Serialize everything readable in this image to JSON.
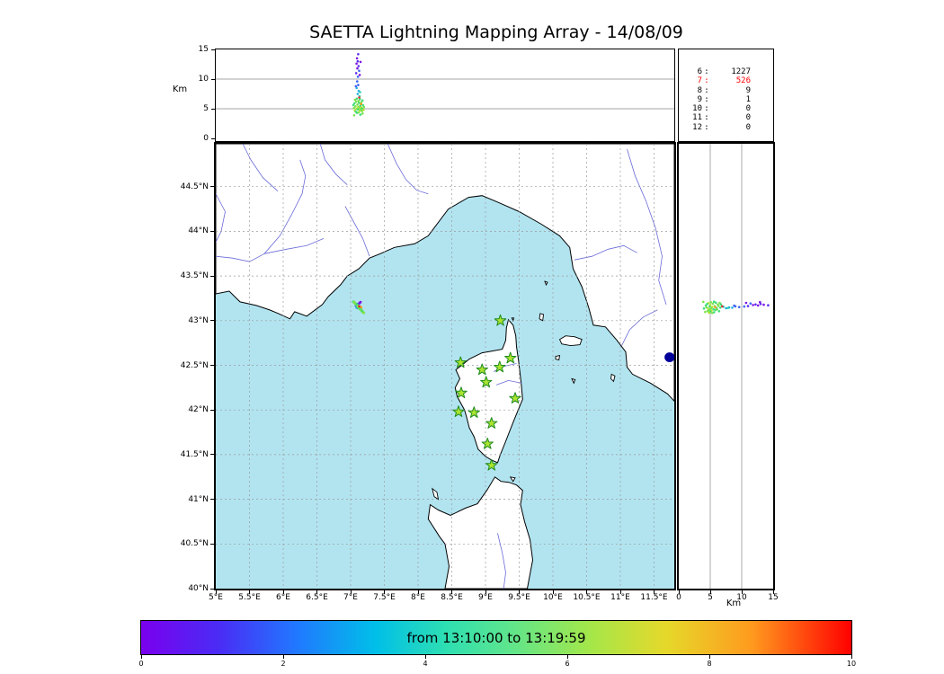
{
  "title": "SAETTA Lightning Mapping Array - 14/08/09",
  "colors": {
    "sea": "#b2e4f0",
    "land": "#ffffff",
    "coast": "#000000",
    "grid": "#9a9a9a",
    "panel_grid": "#888888",
    "river": "#6a6ad9",
    "lake": "#000099",
    "station_fill": "#aae430",
    "station_edge": "#1f8a1f",
    "stats_highlight": "#ff0000"
  },
  "alt_panel": {
    "ylabel": "Km",
    "yticks": [
      "0",
      "5",
      "10",
      "15"
    ],
    "ylim": [
      0,
      15
    ]
  },
  "lat_panel": {
    "xlabel": "Km",
    "xticks": [
      "0",
      "5",
      "10",
      "15"
    ],
    "xlim": [
      0,
      15
    ]
  },
  "stats_panel": {
    "rows": [
      {
        "label": "6",
        "value": "1227",
        "highlight": false
      },
      {
        "label": "7",
        "value": "526",
        "highlight": true
      },
      {
        "label": "8",
        "value": "9",
        "highlight": false
      },
      {
        "label": "9",
        "value": "1",
        "highlight": false
      },
      {
        "label": "10",
        "value": "0",
        "highlight": false
      },
      {
        "label": "11",
        "value": "0",
        "highlight": false
      },
      {
        "label": "12",
        "value": "0",
        "highlight": false
      }
    ]
  },
  "map": {
    "lon_ticks": [
      "5°E",
      "5.5°E",
      "6°E",
      "6.5°E",
      "7°E",
      "7.5°E",
      "8°E",
      "8.5°E",
      "9°E",
      "9.5°E",
      "10°E",
      "10.5°E",
      "11°E",
      "11.5°E"
    ],
    "lat_ticks": [
      "44.5°N",
      "44°N",
      "43.5°N",
      "43°N",
      "42.5°N",
      "42°N",
      "41.5°N",
      "41°N",
      "40.5°N",
      "40°N"
    ],
    "geo": {
      "mainland": [
        [
          5.0,
          43.3
        ],
        [
          5.2,
          43.33
        ],
        [
          5.36,
          43.21
        ],
        [
          5.6,
          43.17
        ],
        [
          5.8,
          43.12
        ],
        [
          5.93,
          43.08
        ],
        [
          6.1,
          43.02
        ],
        [
          6.17,
          43.1
        ],
        [
          6.35,
          43.05
        ],
        [
          6.58,
          43.18
        ],
        [
          6.67,
          43.27
        ],
        [
          6.85,
          43.4
        ],
        [
          6.95,
          43.5
        ],
        [
          7.12,
          43.58
        ],
        [
          7.28,
          43.7
        ],
        [
          7.44,
          43.75
        ],
        [
          7.65,
          43.82
        ],
        [
          7.95,
          43.86
        ],
        [
          8.15,
          43.95
        ],
        [
          8.45,
          44.25
        ],
        [
          8.75,
          44.38
        ],
        [
          8.95,
          44.4
        ],
        [
          9.2,
          44.32
        ],
        [
          9.5,
          44.22
        ],
        [
          9.83,
          44.08
        ],
        [
          10.1,
          43.95
        ],
        [
          10.25,
          43.82
        ],
        [
          10.3,
          43.58
        ],
        [
          10.43,
          43.38
        ],
        [
          10.53,
          43.15
        ],
        [
          10.6,
          42.95
        ],
        [
          10.78,
          42.93
        ],
        [
          10.95,
          42.78
        ],
        [
          11.08,
          42.65
        ],
        [
          11.1,
          42.48
        ],
        [
          11.18,
          42.4
        ],
        [
          11.45,
          42.3
        ],
        [
          11.7,
          42.18
        ],
        [
          11.8,
          42.1
        ],
        [
          11.8,
          44.98
        ],
        [
          5.0,
          44.98
        ]
      ],
      "corsica": [
        [
          9.34,
          43.01
        ],
        [
          9.41,
          42.95
        ],
        [
          9.45,
          42.83
        ],
        [
          9.46,
          42.71
        ],
        [
          9.49,
          42.55
        ],
        [
          9.53,
          42.3
        ],
        [
          9.55,
          42.12
        ],
        [
          9.42,
          41.88
        ],
        [
          9.3,
          41.65
        ],
        [
          9.22,
          41.5
        ],
        [
          9.18,
          41.41
        ],
        [
          9.09,
          41.44
        ],
        [
          9.0,
          41.48
        ],
        [
          8.89,
          41.56
        ],
        [
          8.83,
          41.7
        ],
        [
          8.76,
          41.8
        ],
        [
          8.72,
          41.92
        ],
        [
          8.69,
          42.0
        ],
        [
          8.58,
          42.15
        ],
        [
          8.55,
          42.25
        ],
        [
          8.62,
          42.35
        ],
        [
          8.56,
          42.45
        ],
        [
          8.68,
          42.52
        ],
        [
          8.76,
          42.57
        ],
        [
          8.95,
          42.64
        ],
        [
          9.1,
          42.66
        ],
        [
          9.25,
          42.68
        ],
        [
          9.3,
          42.78
        ],
        [
          9.31,
          42.92
        ]
      ],
      "sardinia": [
        [
          8.4,
          40.0
        ],
        [
          8.46,
          40.25
        ],
        [
          8.4,
          40.5
        ],
        [
          8.32,
          40.58
        ],
        [
          8.15,
          40.78
        ],
        [
          8.18,
          40.94
        ],
        [
          8.3,
          40.88
        ],
        [
          8.48,
          40.82
        ],
        [
          8.7,
          40.9
        ],
        [
          8.88,
          40.95
        ],
        [
          9.02,
          41.1
        ],
        [
          9.14,
          41.25
        ],
        [
          9.23,
          41.2
        ],
        [
          9.35,
          41.19
        ],
        [
          9.46,
          41.16
        ],
        [
          9.55,
          41.1
        ],
        [
          9.52,
          40.94
        ],
        [
          9.58,
          40.75
        ],
        [
          9.66,
          40.55
        ],
        [
          9.7,
          40.32
        ],
        [
          9.62,
          40.0
        ]
      ],
      "islands": [
        [
          [
            10.1,
            42.79
          ],
          [
            10.19,
            42.83
          ],
          [
            10.32,
            42.82
          ],
          [
            10.43,
            42.79
          ],
          [
            10.4,
            42.73
          ],
          [
            10.26,
            42.72
          ],
          [
            10.13,
            42.74
          ]
        ],
        [
          [
            9.81,
            43.08
          ],
          [
            9.86,
            43.07
          ],
          [
            9.85,
            43.0
          ],
          [
            9.8,
            43.02
          ]
        ],
        [
          [
            9.88,
            43.44
          ],
          [
            9.92,
            43.43
          ],
          [
            9.9,
            43.4
          ]
        ],
        [
          [
            10.04,
            42.6
          ],
          [
            10.1,
            42.61
          ],
          [
            10.09,
            42.56
          ],
          [
            10.04,
            42.57
          ]
        ],
        [
          [
            10.28,
            42.35
          ],
          [
            10.33,
            42.34
          ],
          [
            10.31,
            42.3
          ]
        ],
        [
          [
            10.87,
            42.4
          ],
          [
            10.92,
            42.38
          ],
          [
            10.9,
            42.32
          ],
          [
            10.86,
            42.35
          ]
        ],
        [
          [
            8.21,
            41.12
          ],
          [
            8.28,
            41.08
          ],
          [
            8.3,
            41.0
          ],
          [
            8.24,
            41.03
          ]
        ],
        [
          [
            9.37,
            41.25
          ],
          [
            9.44,
            41.24
          ],
          [
            9.41,
            41.2
          ]
        ],
        [
          [
            9.39,
            43.03
          ],
          [
            9.42,
            43.03
          ],
          [
            9.41,
            43.0
          ]
        ]
      ],
      "rivers": [
        [
          [
            5.0,
            43.72
          ],
          [
            5.25,
            43.7
          ],
          [
            5.5,
            43.66
          ],
          [
            5.72,
            43.75
          ],
          [
            5.95,
            43.95
          ],
          [
            6.12,
            44.18
          ],
          [
            6.28,
            44.42
          ],
          [
            6.33,
            44.62
          ],
          [
            6.25,
            44.8
          ]
        ],
        [
          [
            5.72,
            43.75
          ],
          [
            6.05,
            43.8
          ],
          [
            6.35,
            43.84
          ],
          [
            6.6,
            43.92
          ]
        ],
        [
          [
            7.28,
            43.72
          ],
          [
            7.18,
            43.92
          ],
          [
            7.05,
            44.1
          ],
          [
            6.92,
            44.28
          ]
        ],
        [
          [
            7.55,
            44.98
          ],
          [
            7.68,
            44.76
          ],
          [
            7.82,
            44.58
          ],
          [
            7.98,
            44.46
          ],
          [
            8.15,
            44.42
          ]
        ],
        [
          [
            11.1,
            44.92
          ],
          [
            11.22,
            44.62
          ],
          [
            11.38,
            44.34
          ],
          [
            11.52,
            44.04
          ],
          [
            11.62,
            43.72
          ],
          [
            11.57,
            43.45
          ],
          [
            11.68,
            43.18
          ]
        ],
        [
          [
            10.32,
            43.68
          ],
          [
            10.58,
            43.72
          ],
          [
            10.82,
            43.8
          ],
          [
            11.05,
            43.84
          ],
          [
            11.25,
            43.76
          ]
        ],
        [
          [
            11.02,
            42.72
          ],
          [
            11.14,
            42.9
          ],
          [
            11.34,
            43.04
          ],
          [
            11.55,
            43.12
          ]
        ],
        [
          [
            5.0,
            44.42
          ],
          [
            5.14,
            44.22
          ],
          [
            5.08,
            44.0
          ],
          [
            5.0,
            43.88
          ]
        ],
        [
          [
            5.4,
            44.98
          ],
          [
            5.52,
            44.8
          ],
          [
            5.7,
            44.6
          ],
          [
            5.92,
            44.45
          ]
        ],
        [
          [
            6.55,
            44.98
          ],
          [
            6.62,
            44.8
          ],
          [
            6.78,
            44.64
          ],
          [
            6.95,
            44.52
          ]
        ],
        [
          [
            9.54,
            42.3
          ],
          [
            9.34,
            42.33
          ],
          [
            9.16,
            42.28
          ]
        ],
        [
          [
            9.46,
            42.52
          ],
          [
            9.28,
            42.49
          ],
          [
            9.12,
            42.43
          ]
        ],
        [
          [
            9.18,
            40.62
          ],
          [
            9.25,
            40.4
          ],
          [
            9.3,
            40.18
          ],
          [
            9.27,
            40.0
          ]
        ]
      ],
      "lakes": [
        {
          "c": [
            11.73,
            42.59
          ],
          "rx": 0.075,
          "ry": 0.055
        }
      ]
    }
  },
  "colorbar": {
    "label": "from 13:10:00 to 13:19:59",
    "ticks": [
      "0",
      "2",
      "4",
      "6",
      "8",
      "10"
    ],
    "stops": [
      {
        "o": 0,
        "c": "#7a00ee"
      },
      {
        "o": 11,
        "c": "#4a2cf5"
      },
      {
        "o": 22,
        "c": "#2079ff"
      },
      {
        "o": 33,
        "c": "#00bfe8"
      },
      {
        "o": 43,
        "c": "#2edfb2"
      },
      {
        "o": 52,
        "c": "#5fe58c"
      },
      {
        "o": 63,
        "c": "#a3e74a"
      },
      {
        "o": 74,
        "c": "#e6d82a"
      },
      {
        "o": 86,
        "c": "#ff9a1e"
      },
      {
        "o": 100,
        "c": "#ff0000"
      }
    ]
  },
  "chart_data": {
    "type": "scatter",
    "title": "SAETTA Lightning Mapping Array - 14/08/09",
    "time_window": {
      "from": "13:10:00",
      "to": "13:19:59"
    },
    "colorbar_range": [
      0,
      10
    ],
    "station_source_counts": {
      "6": 1227,
      "7": 526,
      "8": 9,
      "9": 1,
      "10": 0,
      "11": 0,
      "12": 0
    },
    "panels": {
      "top": {
        "x": "longitude_E",
        "y": "altitude_km",
        "ylim": [
          0,
          15
        ],
        "yticks": [
          0,
          5,
          10,
          15
        ]
      },
      "map": {
        "x": "longitude_E",
        "y": "latitude_N",
        "xlim": [
          5,
          11.8
        ],
        "ylim": [
          40,
          44.98
        ]
      },
      "right": {
        "x": "altitude_km",
        "y": "latitude_N",
        "xlim": [
          0,
          15
        ],
        "xticks": [
          0,
          5,
          10,
          15
        ]
      }
    },
    "stations": [
      [
        9.22,
        43.0
      ],
      [
        8.63,
        42.53
      ],
      [
        8.95,
        42.45
      ],
      [
        9.21,
        42.48
      ],
      [
        9.37,
        42.58
      ],
      [
        9.01,
        42.31
      ],
      [
        8.64,
        42.19
      ],
      [
        9.44,
        42.13
      ],
      [
        8.6,
        41.98
      ],
      [
        8.83,
        41.97
      ],
      [
        9.09,
        41.85
      ],
      [
        9.03,
        41.62
      ],
      [
        9.09,
        41.38
      ]
    ],
    "palette": [
      "#7d14e6",
      "#5a2cf0",
      "#3c64f5",
      "#28aee0",
      "#2ed1b4",
      "#3fdd7a",
      "#7ae24c",
      "#b2e428",
      "#ff9a1e",
      "#e03030"
    ],
    "sources": [
      [
        7.095,
        43.178,
        13.5,
        0
      ],
      [
        7.105,
        43.186,
        13.0,
        1
      ],
      [
        7.088,
        43.17,
        12.6,
        0
      ],
      [
        7.118,
        43.181,
        12.2,
        1
      ],
      [
        7.1,
        43.175,
        11.8,
        0
      ],
      [
        7.126,
        43.192,
        11.4,
        2
      ],
      [
        7.083,
        43.163,
        11.0,
        1
      ],
      [
        7.135,
        43.199,
        10.7,
        0
      ],
      [
        7.108,
        43.158,
        10.4,
        2
      ],
      [
        7.147,
        43.207,
        12.9,
        0
      ],
      [
        7.112,
        43.172,
        14.2,
        1
      ],
      [
        7.098,
        43.152,
        9.6,
        2
      ],
      [
        7.112,
        43.16,
        9.0,
        2
      ],
      [
        7.09,
        43.145,
        8.5,
        3
      ],
      [
        7.12,
        43.148,
        8.0,
        3
      ],
      [
        7.104,
        43.14,
        7.5,
        3
      ],
      [
        7.132,
        43.156,
        7.1,
        4
      ],
      [
        7.078,
        43.168,
        8.8,
        2
      ],
      [
        7.14,
        43.142,
        7.8,
        4
      ],
      [
        7.04,
        43.212,
        5.6,
        5
      ],
      [
        7.048,
        43.206,
        5.1,
        6
      ],
      [
        7.056,
        43.2,
        5.9,
        5
      ],
      [
        7.062,
        43.196,
        4.7,
        7
      ],
      [
        7.07,
        43.19,
        5.4,
        6
      ],
      [
        7.076,
        43.186,
        4.5,
        5
      ],
      [
        7.082,
        43.18,
        6.2,
        6
      ],
      [
        7.088,
        43.174,
        5.0,
        7
      ],
      [
        7.094,
        43.17,
        4.3,
        5
      ],
      [
        7.1,
        43.164,
        5.7,
        6
      ],
      [
        7.106,
        43.158,
        4.9,
        5
      ],
      [
        7.112,
        43.152,
        5.3,
        7
      ],
      [
        7.118,
        43.148,
        4.4,
        6
      ],
      [
        7.124,
        43.142,
        6.0,
        5
      ],
      [
        7.13,
        43.138,
        5.1,
        6
      ],
      [
        7.136,
        43.132,
        4.7,
        7
      ],
      [
        7.142,
        43.128,
        5.5,
        5
      ],
      [
        7.148,
        43.122,
        4.9,
        6
      ],
      [
        7.154,
        43.118,
        5.8,
        5
      ],
      [
        7.16,
        43.112,
        5.2,
        7
      ],
      [
        7.166,
        43.108,
        4.6,
        6
      ],
      [
        7.172,
        43.102,
        5.0,
        5
      ],
      [
        7.178,
        43.098,
        4.2,
        6
      ],
      [
        7.184,
        43.094,
        5.6,
        5
      ],
      [
        7.066,
        43.198,
        6.5,
        6
      ],
      [
        7.092,
        43.182,
        6.7,
        5
      ],
      [
        7.116,
        43.166,
        6.3,
        6
      ],
      [
        7.138,
        43.146,
        6.6,
        5
      ],
      [
        7.158,
        43.126,
        6.1,
        6
      ],
      [
        7.176,
        43.106,
        6.4,
        5
      ],
      [
        7.052,
        43.21,
        3.9,
        6
      ],
      [
        7.144,
        43.136,
        4.0,
        5
      ],
      [
        7.19,
        43.09,
        4.8,
        7
      ],
      [
        7.198,
        43.086,
        5.3,
        6
      ],
      [
        7.155,
        43.15,
        5.8,
        8
      ],
      [
        7.128,
        43.16,
        6.9,
        9
      ]
    ]
  }
}
